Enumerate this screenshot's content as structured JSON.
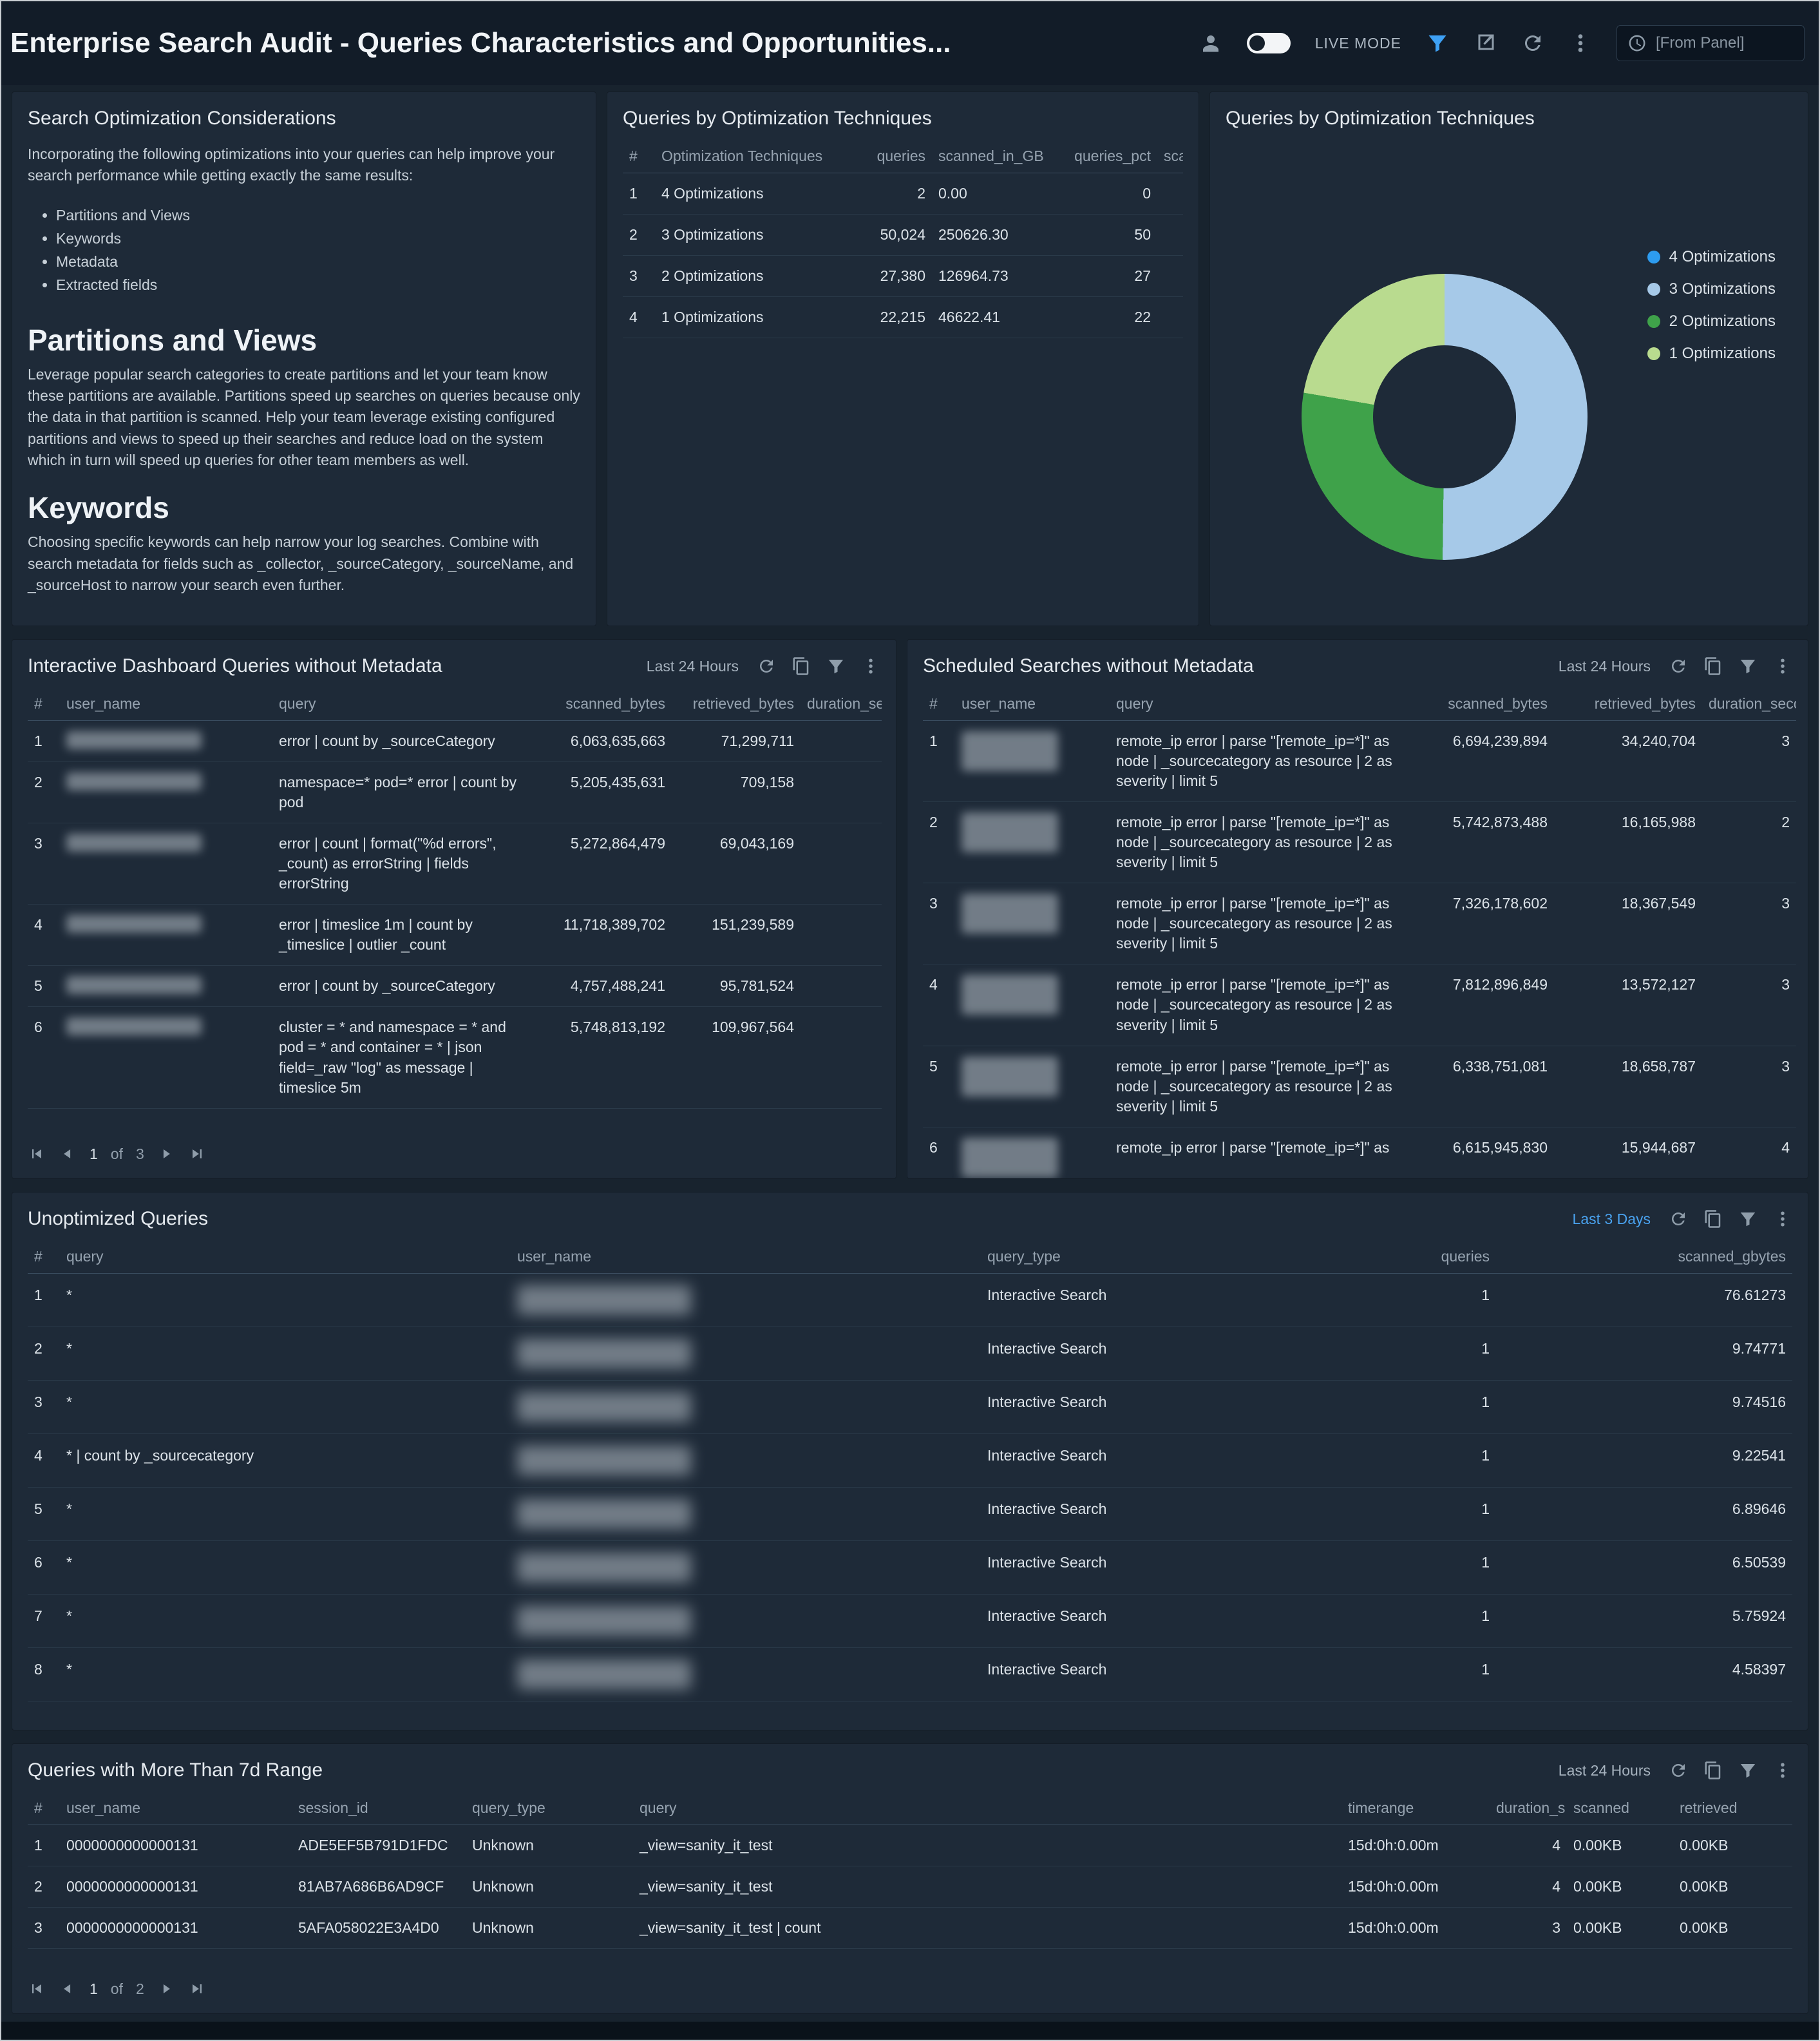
{
  "header": {
    "title": "Enterprise Search Audit - Queries Characteristics and Opportunities...",
    "live_mode_label": "LIVE MODE",
    "time_input": "[From Panel]"
  },
  "panels": {
    "considerations": {
      "title": "Search Optimization Considerations",
      "intro": "Incorporating the following optimizations into your queries can help improve your search performance while getting exactly the same results:",
      "bullets": [
        "Partitions and Views",
        "Keywords",
        "Metadata",
        "Extracted fields"
      ],
      "sections": [
        {
          "heading": "Partitions and Views",
          "body": "Leverage popular search categories to create partitions and let your team know these partitions are available. Partitions speed up searches on queries because only the data in that partition is scanned. Help your team leverage existing configured partitions and views to speed up their searches and reduce load on the system which in turn will speed up queries for other team members as well."
        },
        {
          "heading": "Keywords",
          "body": "Choosing specific keywords can help narrow your log searches. Combine with search metadata for fields such as _collector, _sourceCategory, _sourceName, and _sourceHost to narrow your search even further."
        }
      ]
    },
    "opt_table": {
      "title": "Queries by Optimization Techniques",
      "table": {
        "columns": [
          "#",
          "Optimization Techniques",
          "queries",
          "scanned_in_GB",
          "queries_pct",
          "scanne"
        ],
        "rows": [
          [
            "1",
            "4 Optimizations",
            "2",
            "0.00",
            "0",
            ""
          ],
          [
            "2",
            "3 Optimizations",
            "50,024",
            "250626.30",
            "50",
            ""
          ],
          [
            "3",
            "2 Optimizations",
            "27,380",
            "126964.73",
            "27",
            ""
          ],
          [
            "4",
            "1 Optimizations",
            "22,215",
            "46622.41",
            "22",
            ""
          ]
        ]
      }
    },
    "opt_chart": {
      "title": "Queries by Optimization Techniques"
    },
    "dash": {
      "title": "Interactive Dashboard Queries without Metadata",
      "time_range": "Last 24 Hours",
      "table": {
        "columns": [
          "#",
          "user_name",
          "query",
          "scanned_bytes",
          "retrieved_bytes",
          "duration_sec"
        ],
        "rows": [
          [
            "1",
            {
              "redacted": true
            },
            "error | count by _sourceCategory",
            "6,063,635,663",
            "71,299,711",
            ""
          ],
          [
            "2",
            {
              "redacted": true
            },
            "namespace=* pod=* error | count by pod",
            "5,205,435,631",
            "709,158",
            ""
          ],
          [
            "3",
            {
              "redacted": true
            },
            "error | count | format(\"%d errors\", _count) as errorString | fields errorString",
            "5,272,864,479",
            "69,043,169",
            ""
          ],
          [
            "4",
            {
              "redacted": true
            },
            "error | timeslice 1m | count by _timeslice | outlier _count",
            "11,718,389,702",
            "151,239,589",
            ""
          ],
          [
            "5",
            {
              "redacted": true
            },
            "error | count by _sourceCategory",
            "4,757,488,241",
            "95,781,524",
            ""
          ],
          [
            "6",
            {
              "redacted": true
            },
            "cluster = * and namespace = * and pod = * and container = * | json field=_raw \"log\" as message | timeslice 5m",
            "5,748,813,192",
            "109,967,564",
            ""
          ]
        ]
      },
      "pagination": {
        "current": "1",
        "label": "of",
        "total": "3"
      }
    },
    "sched": {
      "title": "Scheduled Searches without Metadata",
      "time_range": "Last 24 Hours",
      "table": {
        "columns": [
          "#",
          "user_name",
          "query",
          "scanned_bytes",
          "retrieved_bytes",
          "duration_seconds"
        ],
        "rows": [
          [
            "1",
            {
              "redacted": true
            },
            "remote_ip error | parse \"[remote_ip=*]\" as node | _sourcecategory as resource | 2 as severity | limit 5",
            "6,694,239,894",
            "34,240,704",
            "3"
          ],
          [
            "2",
            {
              "redacted": true
            },
            "remote_ip error | parse \"[remote_ip=*]\" as node | _sourcecategory as resource | 2 as severity | limit 5",
            "5,742,873,488",
            "16,165,988",
            "2"
          ],
          [
            "3",
            {
              "redacted": true
            },
            "remote_ip error | parse \"[remote_ip=*]\" as node | _sourcecategory as resource | 2 as severity | limit 5",
            "7,326,178,602",
            "18,367,549",
            "3"
          ],
          [
            "4",
            {
              "redacted": true
            },
            "remote_ip error | parse \"[remote_ip=*]\" as node | _sourcecategory as resource | 2 as severity | limit 5",
            "7,812,896,849",
            "13,572,127",
            "3"
          ],
          [
            "5",
            {
              "redacted": true
            },
            "remote_ip error | parse \"[remote_ip=*]\" as node | _sourcecategory as resource | 2 as severity | limit 5",
            "6,338,751,081",
            "18,658,787",
            "3"
          ],
          [
            "6",
            {
              "redacted": true
            },
            "remote_ip error | parse \"[remote_ip=*]\" as",
            "6,615,945,830",
            "15,944,687",
            "4"
          ]
        ]
      }
    },
    "unopt": {
      "title": "Unoptimized Queries",
      "time_range": "Last 3 Days",
      "table": {
        "columns": [
          "#",
          "query",
          "user_name",
          "query_type",
          "queries",
          "scanned_gbytes"
        ],
        "rows": [
          [
            "1",
            "*",
            {
              "redacted": true
            },
            "Interactive Search",
            "1",
            "76.61273"
          ],
          [
            "2",
            "*",
            {
              "redacted": true
            },
            "Interactive Search",
            "1",
            "9.74771"
          ],
          [
            "3",
            "*",
            {
              "redacted": true
            },
            "Interactive Search",
            "1",
            "9.74516"
          ],
          [
            "4",
            "* | count by _sourcecategory",
            {
              "redacted": true
            },
            "Interactive Search",
            "1",
            "9.22541"
          ],
          [
            "5",
            "*",
            {
              "redacted": true
            },
            "Interactive Search",
            "1",
            "6.89646"
          ],
          [
            "6",
            "*",
            {
              "redacted": true
            },
            "Interactive Search",
            "1",
            "6.50539"
          ],
          [
            "7",
            "*",
            {
              "redacted": true
            },
            "Interactive Search",
            "1",
            "5.75924"
          ],
          [
            "8",
            "*",
            {
              "redacted": true
            },
            "Interactive Search",
            "1",
            "4.58397"
          ]
        ]
      }
    },
    "range7d": {
      "title": "Queries with More Than 7d Range",
      "time_range": "Last 24 Hours",
      "table": {
        "columns": [
          "#",
          "user_name",
          "session_id",
          "query_type",
          "query",
          "timerange",
          "duration_s",
          "scanned",
          "retrieved"
        ],
        "rows": [
          [
            "1",
            "0000000000000131",
            "ADE5EF5B791D1FDC",
            "Unknown",
            "_view=sanity_it_test",
            "15d:0h:0.00m",
            "4",
            "0.00KB",
            "0.00KB"
          ],
          [
            "2",
            "0000000000000131",
            "81AB7A686B6AD9CF",
            "Unknown",
            "_view=sanity_it_test",
            "15d:0h:0.00m",
            "4",
            "0.00KB",
            "0.00KB"
          ],
          [
            "3",
            "0000000000000131",
            "5AFA058022E3A4D0",
            "Unknown",
            "_view=sanity_it_test | count",
            "15d:0h:0.00m",
            "3",
            "0.00KB",
            "0.00KB"
          ]
        ]
      },
      "pagination": {
        "current": "1",
        "label": "of",
        "total": "2"
      }
    }
  },
  "chart_data": {
    "type": "pie",
    "donut": true,
    "title": "Queries by Optimization Techniques",
    "categories": [
      "4 Optimizations",
      "3 Optimizations",
      "2 Optimizations",
      "1 Optimizations"
    ],
    "values": [
      2,
      50024,
      27380,
      22215
    ],
    "percentages": [
      0.0,
      50.2,
      27.5,
      22.3
    ],
    "colors": [
      "#2d9cf0",
      "#a6c9e8",
      "#3fa24a",
      "#b9db8f"
    ],
    "legend_position": "right"
  }
}
